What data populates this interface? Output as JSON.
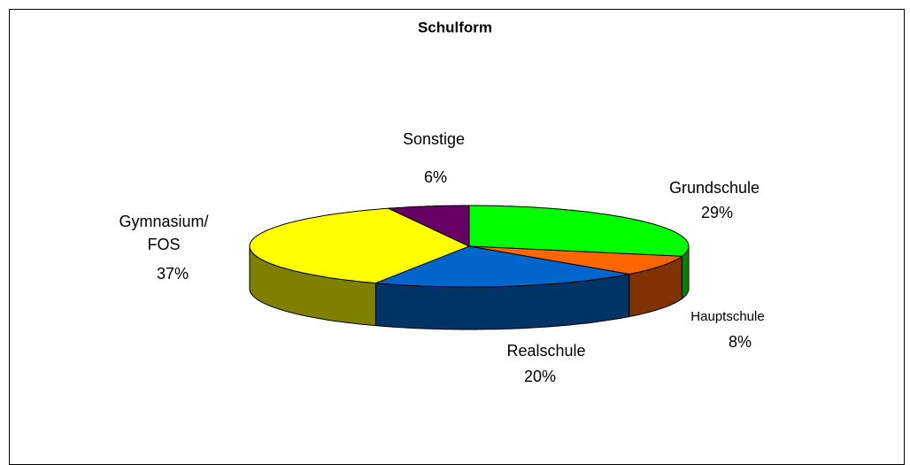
{
  "chart_data": {
    "type": "pie",
    "title": "Schulform",
    "categories": [
      "Grundschule",
      "Hauptschule",
      "Realschule",
      "Gymnasium/ FOS",
      "Sonstige"
    ],
    "values": [
      29,
      8,
      20,
      37,
      6
    ],
    "value_labels": [
      "29%",
      "8%",
      "20%",
      "37%",
      "6%"
    ],
    "colors": [
      "#00ff00",
      "#ff6600",
      "#0066cc",
      "#ffff00",
      "#660066"
    ],
    "side_colors": [
      "#008000",
      "#803300",
      "#003366",
      "#808000",
      "#330033"
    ]
  }
}
